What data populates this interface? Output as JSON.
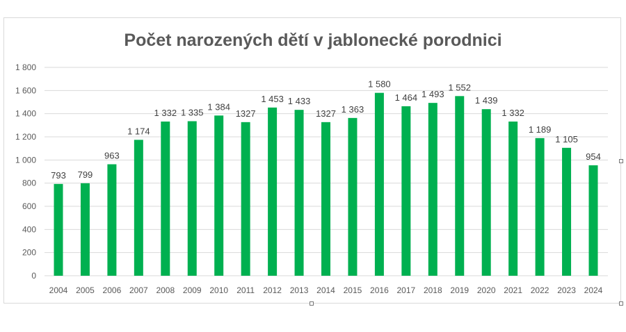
{
  "chart_data": {
    "type": "bar",
    "title": "Počet narozených dětí v jablonecké porodnici",
    "categories": [
      "2004",
      "2005",
      "2006",
      "2007",
      "2008",
      "2009",
      "2010",
      "2011",
      "2012",
      "2013",
      "2014",
      "2015",
      "2016",
      "2017",
      "2018",
      "2019",
      "2020",
      "2021",
      "2022",
      "2023",
      "2024"
    ],
    "values": [
      793,
      799,
      963,
      1174,
      1332,
      1335,
      1384,
      1327,
      1453,
      1433,
      1327,
      1363,
      1580,
      1464,
      1493,
      1552,
      1439,
      1332,
      1189,
      1105,
      954
    ],
    "data_labels": [
      "793",
      "799",
      "963",
      "1 174",
      "1 332",
      "1 335",
      "1 384",
      "1327",
      "1 453",
      "1 433",
      "1327",
      "1 363",
      "1 580",
      "1 464",
      "1 493",
      "1 552",
      "1 439",
      "1 332",
      "1 189",
      "1 105",
      "954"
    ],
    "yticks": [
      "0",
      "200",
      "400",
      "600",
      "800",
      "1 000",
      "1 200",
      "1 400",
      "1 600",
      "1 800"
    ],
    "ylim": [
      0,
      1800
    ],
    "grid": true,
    "bar_color": "#00b050",
    "xlabel": "",
    "ylabel": ""
  }
}
